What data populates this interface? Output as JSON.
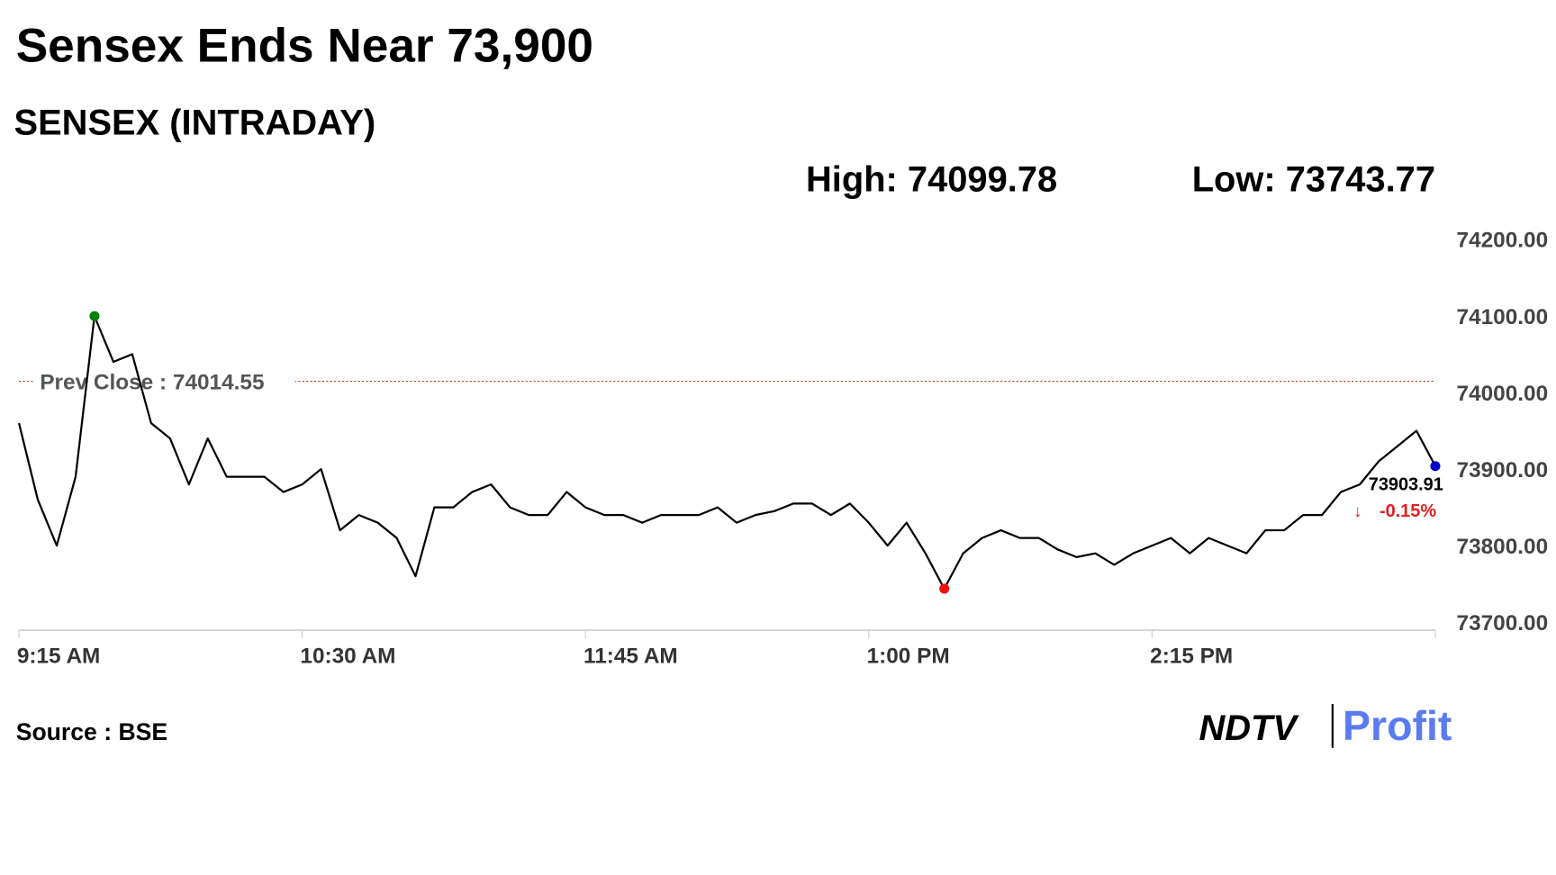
{
  "chart_data": {
    "type": "line",
    "title": "Sensex Ends Near 73,900",
    "subtitle": "SENSEX (INTRADAY)",
    "high_label": "High:",
    "high": 74099.78,
    "low_label": "Low:",
    "low": 73743.77,
    "prev_close_label": "Prev Close :",
    "prev_close": 74014.55,
    "change": {
      "value": -0.15,
      "label": "-0.15%"
    },
    "source": "Source : BSE",
    "logo": {
      "brand": "NDTV",
      "product": "Profit"
    },
    "x": [
      "9:15 AM",
      "9:20 AM",
      "9:25 AM",
      "9:30 AM",
      "9:35 AM",
      "9:40 AM",
      "9:45 AM",
      "9:50 AM",
      "9:55 AM",
      "10:00 AM",
      "10:05 AM",
      "10:10 AM",
      "10:15 AM",
      "10:20 AM",
      "10:25 AM",
      "10:30 AM",
      "10:35 AM",
      "10:40 AM",
      "10:45 AM",
      "10:50 AM",
      "10:55 AM",
      "11:00 AM",
      "11:05 AM",
      "11:10 AM",
      "11:15 AM",
      "11:20 AM",
      "11:25 AM",
      "11:30 AM",
      "11:35 AM",
      "11:40 AM",
      "11:45 AM",
      "11:50 AM",
      "11:55 AM",
      "12:00 PM",
      "12:05 PM",
      "12:10 PM",
      "12:15 PM",
      "12:20 PM",
      "12:25 PM",
      "12:30 PM",
      "12:35 PM",
      "12:40 PM",
      "12:45 PM",
      "12:50 PM",
      "12:55 PM",
      "1:00 PM",
      "1:05 PM",
      "1:10 PM",
      "1:15 PM",
      "1:20 PM",
      "1:25 PM",
      "1:30 PM",
      "1:35 PM",
      "1:40 PM",
      "1:45 PM",
      "1:50 PM",
      "1:55 PM",
      "2:00 PM",
      "2:05 PM",
      "2:10 PM",
      "2:15 PM",
      "2:20 PM",
      "2:25 PM",
      "2:30 PM",
      "2:35 PM",
      "2:40 PM",
      "2:45 PM",
      "2:50 PM",
      "2:55 PM",
      "3:00 PM",
      "3:05 PM",
      "3:10 PM",
      "3:15 PM",
      "3:20 PM",
      "3:25 PM",
      "3:30 PM"
    ],
    "series": [
      {
        "name": "SENSEX",
        "color": "#000000",
        "values": [
          73960,
          73860,
          73800,
          73890,
          74099.78,
          74040,
          74050,
          73960,
          73940,
          73880,
          73940,
          73890,
          73890,
          73890,
          73870,
          73880,
          73900,
          73820,
          73840,
          73830,
          73810,
          73760,
          73850,
          73850,
          73870,
          73880,
          73850,
          73840,
          73840,
          73870,
          73850,
          73840,
          73840,
          73830,
          73840,
          73840,
          73840,
          73850,
          73830,
          73840,
          73845,
          73855,
          73855,
          73840,
          73855,
          73830,
          73800,
          73830,
          73790,
          73743.77,
          73790,
          73810,
          73820,
          73810,
          73810,
          73795,
          73785,
          73790,
          73775,
          73790,
          73800,
          73810,
          73790,
          73810,
          73800,
          73790,
          73820,
          73820,
          73840,
          73840,
          73870,
          73880,
          73910,
          73930,
          73950,
          73903.91
        ]
      }
    ],
    "xticks": [
      "9:15 AM",
      "10:30 AM",
      "11:45 AM",
      "1:00 PM",
      "2:15 PM"
    ],
    "ylim": [
      73700,
      74200
    ],
    "yticks": [
      {
        "value": 73700,
        "label": "73700.00"
      },
      {
        "value": 73800,
        "label": "73800.00"
      },
      {
        "value": 73900,
        "label": "73900.00"
      },
      {
        "value": 74000,
        "label": "74000.00"
      },
      {
        "value": 74100,
        "label": "74100.00"
      },
      {
        "value": 74200,
        "label": "74200.00"
      }
    ],
    "high_color": "#008000",
    "low_color": "#ee1111",
    "last_color": "#0000cc",
    "prev_close_color": "#c0392b"
  }
}
